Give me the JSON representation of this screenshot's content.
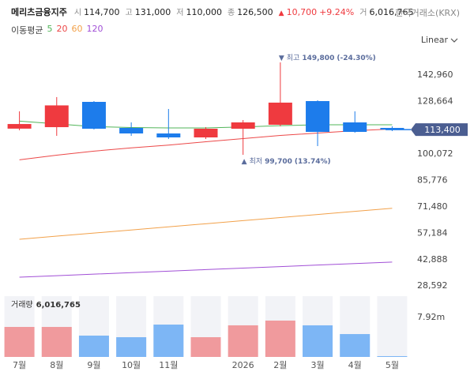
{
  "header": {
    "name": "메리츠금융지주",
    "fields": [
      {
        "label": "시",
        "value": "114,700"
      },
      {
        "label": "고",
        "value": "131,000"
      },
      {
        "label": "저",
        "value": "110,000"
      },
      {
        "label": "종",
        "value": "126,500"
      }
    ],
    "change_marker": "▲",
    "change": "10,700",
    "change_pct": "+9.24%",
    "volume_label": "거",
    "volume": "6,016,765",
    "exchange": "한국거래소(KRX)"
  },
  "chart_data": {
    "type": "candlestick",
    "categories": [
      "7월",
      "8월",
      "9월",
      "10월",
      "11월",
      null,
      "2026",
      "2월",
      "3월",
      "4월",
      "5월"
    ],
    "open": [
      113900,
      114700,
      128410,
      114290,
      111290,
      109150,
      113860,
      116000,
      128840,
      117280,
      114290
    ],
    "high": [
      123270,
      131000,
      128840,
      117280,
      124560,
      114710,
      118560,
      149800,
      129270,
      123270,
      115140
    ],
    "low": [
      113000,
      110000,
      113430,
      110000,
      108290,
      108290,
      99700,
      115140,
      104440,
      111710,
      112570
    ],
    "close": [
      116400,
      126500,
      113860,
      111290,
      109150,
      113860,
      117280,
      128000,
      112140,
      112140,
      113400
    ],
    "up_color": "#ef3a3f",
    "down_color": "#1d7ceb",
    "ma_title": "이동평균",
    "moving_averages": [
      {
        "name": "5",
        "color": "#52b55a",
        "values": [
          118000,
          116500,
          115000,
          114500,
          114300,
          114300,
          114800,
          115500,
          116000,
          116000,
          116000
        ]
      },
      {
        "name": "20",
        "color": "#ec4848",
        "values": [
          97000,
          99500,
          101700,
          103500,
          105000,
          106800,
          108500,
          110200,
          111500,
          112800,
          113700
        ]
      },
      {
        "name": "60",
        "color": "#f2a14a",
        "values": [
          53950,
          55630,
          57310,
          58990,
          60670,
          62350,
          64030,
          65710,
          67390,
          69070,
          70750
        ]
      },
      {
        "name": "120",
        "color": "#a14fd6",
        "values": [
          33390,
          34210,
          35030,
          35850,
          36670,
          37490,
          38310,
          39130,
          39950,
          40770,
          41590
        ]
      }
    ],
    "ylim": [
      25260,
      157084
    ],
    "yticks": [
      {
        "value": 28592,
        "label": "28,592"
      },
      {
        "value": 42888,
        "label": "42,888"
      },
      {
        "value": 57184,
        "label": "57,184"
      },
      {
        "value": 71480,
        "label": "71,480"
      },
      {
        "value": 85776,
        "label": "85,776"
      },
      {
        "value": 100072,
        "label": "100,072"
      },
      {
        "value": 128664,
        "label": "128,664"
      },
      {
        "value": 142960,
        "label": "142,960"
      }
    ],
    "log_scale": false,
    "scale_label": "Linear",
    "grid": false,
    "current_price": {
      "value": 113400,
      "label": "113,400"
    },
    "annotations": {
      "high": {
        "marker": "▼",
        "label": "최고",
        "value": "149,800",
        "pct": "(-24.30%)"
      },
      "low": {
        "marker": "▲",
        "label": "최저",
        "value": "99,700",
        "pct": "(13.74%)"
      }
    },
    "volume": {
      "title": "거래량",
      "values": [
        6020000,
        6016765,
        4280000,
        3960000,
        6490000,
        3960000,
        6340000,
        7290000,
        6340000,
        4590000,
        160000
      ],
      "value_labels": [
        null,
        "6,016,765",
        null,
        null,
        null,
        null,
        null,
        null,
        null,
        null,
        null
      ],
      "ylim": [
        0,
        12196800
      ],
      "yticks": [
        {
          "value": 7920000,
          "label": "7.92m"
        }
      ],
      "up_color": "#f09a9d",
      "down_color": "#7db6f5",
      "background": "#f2f3f7"
    }
  }
}
